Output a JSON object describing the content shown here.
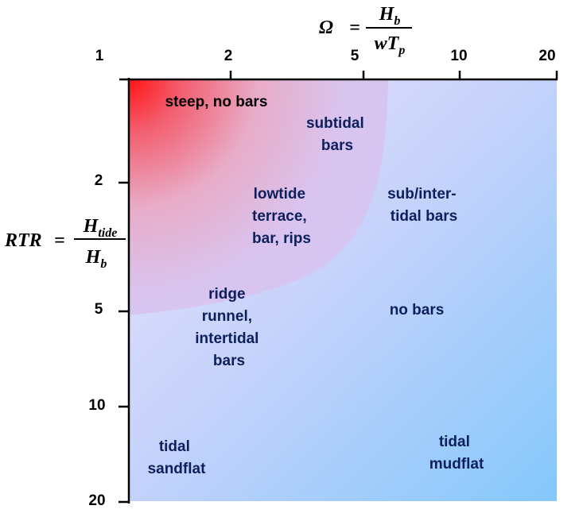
{
  "x_axis": {
    "symbol": "Ω",
    "equals": "=",
    "numerator": "H",
    "numerator_sub": "b",
    "denominator": "wT",
    "denominator_sub": "p",
    "ticks": [
      "1",
      "2",
      "5",
      "10",
      "20"
    ]
  },
  "y_axis": {
    "symbol": "RTR",
    "equals": "=",
    "numerator": "H",
    "numerator_sub": "tide",
    "denominator": "H",
    "denominator_sub": "b",
    "ticks": [
      "2",
      "5",
      "10",
      "20"
    ]
  },
  "regions": {
    "steep": [
      "steep, no bars"
    ],
    "subtidal": [
      "subtidal",
      "bars"
    ],
    "lowtide": [
      "lowtide",
      "terrace,",
      "bar, rips"
    ],
    "sub_intertidal": [
      "sub/inter-",
      "tidal bars"
    ],
    "ridge_runnel": [
      "ridge",
      "runnel,",
      "intertidal",
      "bars"
    ],
    "no_bars": [
      "no bars"
    ],
    "tidal_sandflat": [
      "tidal",
      "sandflat"
    ],
    "tidal_mudflat": [
      "tidal",
      "mudflat"
    ]
  },
  "colors": {
    "label_dark": "#0d1f5c",
    "label_black": "#000000",
    "steep_red": "#ff1a1a",
    "pink_region": "#eab8d6",
    "lavender": "#d8d6fb",
    "sky_blue": "#84c8fb"
  }
}
